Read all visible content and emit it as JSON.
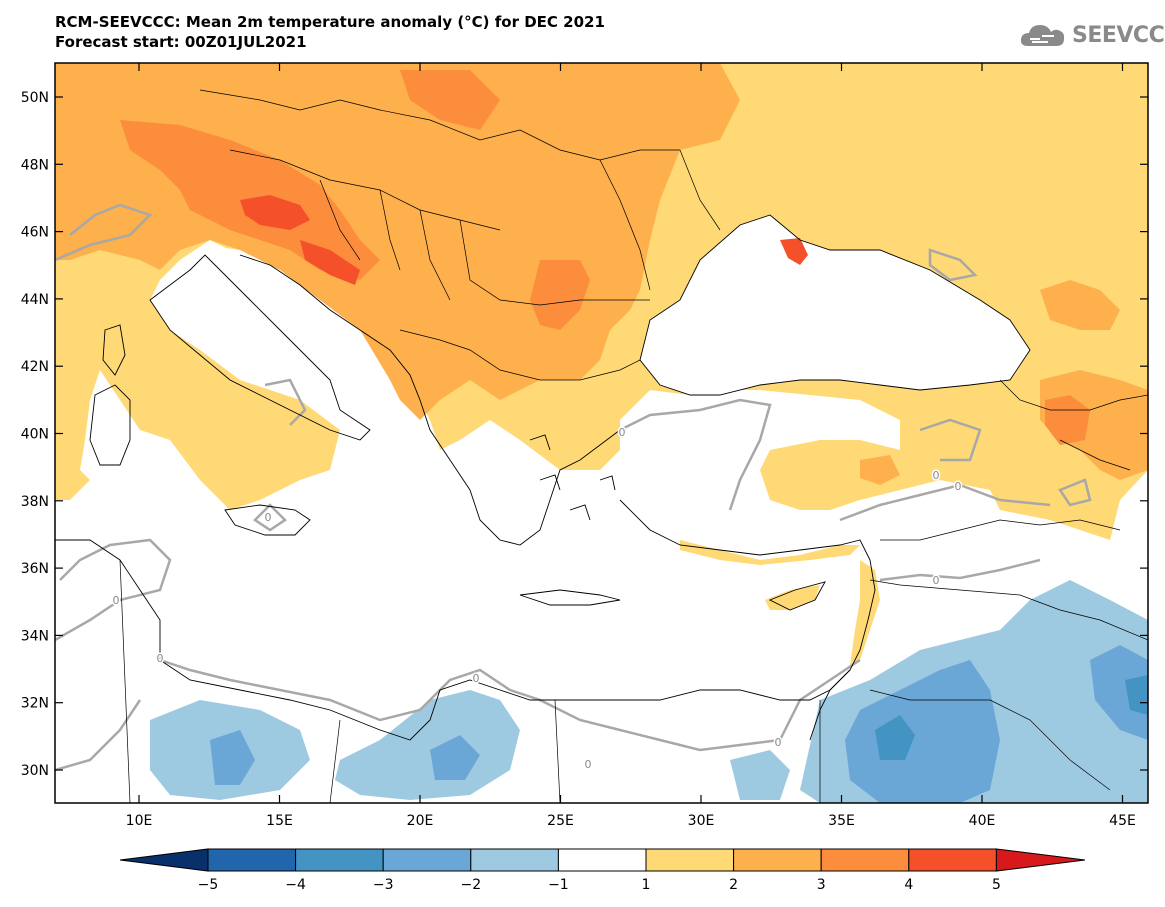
{
  "header": {
    "title_line1": "RCM-SEEVCCC: Mean 2m temperature anomaly (°C) for DEC 2021",
    "title_line2": "Forecast start: 00Z01JUL2021"
  },
  "logo": {
    "text": "SEEVCCC",
    "icon": "cloud-icon"
  },
  "map": {
    "lat_labels": [
      "50N",
      "48N",
      "46N",
      "44N",
      "42N",
      "40N",
      "38N",
      "36N",
      "34N",
      "32N",
      "30N"
    ],
    "lon_labels": [
      "10E",
      "15E",
      "20E",
      "25E",
      "30E",
      "35E",
      "40E",
      "45E"
    ],
    "contour_labels": [
      "0",
      "0",
      "0",
      "0",
      "0",
      "0",
      "0",
      "0",
      "0",
      "0"
    ]
  },
  "legend": {
    "labels": [
      "-5",
      "-4",
      "-3",
      "-2",
      "-1",
      "1",
      "2",
      "3",
      "4",
      "5"
    ],
    "colors": [
      "#08306b",
      "#2166ac",
      "#4393c3",
      "#6aa7d6",
      "#9ecae1",
      "#ffffff",
      "#fed976",
      "#fdb04b",
      "#fc8d3c",
      "#f4502a",
      "#d7191c"
    ]
  },
  "colors": {
    "warm1": "#fed976",
    "warm2": "#fdb04b",
    "warm3": "#fc8d3c",
    "warm4": "#f4502a",
    "cool1": "#9ecae1",
    "cool2": "#6aa7d6",
    "cool3": "#4393c3",
    "contour": "#a8a8a8"
  }
}
